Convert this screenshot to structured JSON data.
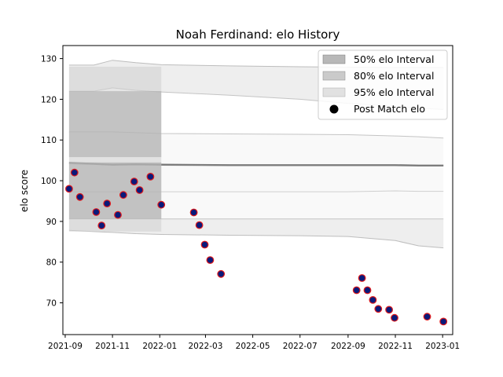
{
  "chart_data": {
    "type": "scatter",
    "title": "Noah Ferdinand: elo History",
    "xlabel": "",
    "ylabel": "elo score",
    "xlim": [
      "2021-08-29",
      "2023-01-14"
    ],
    "ylim": [
      62.2,
      133.2
    ],
    "x_ticks": [
      "2021-09",
      "2021-11",
      "2022-01",
      "2022-03",
      "2022-05",
      "2022-07",
      "2022-09",
      "2022-11",
      "2023-01"
    ],
    "y_ticks": [
      70,
      80,
      90,
      100,
      110,
      120,
      130
    ],
    "legend": {
      "position": "top-right",
      "items": [
        "50% elo Interval",
        "80% elo Interval",
        "95% elo Interval",
        "Post Match elo"
      ]
    },
    "grid": false,
    "colors": {
      "marker_fill": "#0a1a7a",
      "marker_edge": "#e0191b",
      "band50": "#888888",
      "band80": "#a8a8a8",
      "band95": "#cfcfcf",
      "mean_line": "#777777"
    },
    "series": [
      {
        "name": "Post Match elo",
        "points": [
          [
            "2021-09-06",
            98.0
          ],
          [
            "2021-09-13",
            102.0
          ],
          [
            "2021-09-20",
            96.0
          ],
          [
            "2021-10-11",
            92.3
          ],
          [
            "2021-10-18",
            89.0
          ],
          [
            "2021-10-25",
            94.4
          ],
          [
            "2021-11-08",
            91.6
          ],
          [
            "2021-11-15",
            96.5
          ],
          [
            "2021-11-29",
            99.8
          ],
          [
            "2021-12-06",
            97.7
          ],
          [
            "2021-12-20",
            101.0
          ],
          [
            "2022-01-03",
            94.1
          ],
          [
            "2022-02-14",
            92.2
          ],
          [
            "2022-02-21",
            89.1
          ],
          [
            "2022-02-28",
            84.3
          ],
          [
            "2022-03-07",
            80.5
          ],
          [
            "2022-03-21",
            77.1
          ],
          [
            "2022-09-12",
            73.1
          ],
          [
            "2022-09-19",
            76.1
          ],
          [
            "2022-09-26",
            73.1
          ],
          [
            "2022-10-03",
            70.7
          ],
          [
            "2022-10-10",
            68.5
          ],
          [
            "2022-10-24",
            68.3
          ],
          [
            "2022-10-31",
            66.3
          ],
          [
            "2022-12-12",
            66.6
          ],
          [
            "2023-01-02",
            65.4
          ]
        ]
      }
    ],
    "intervals": {
      "x": [
        "2021-09-06",
        "2021-10-08",
        "2021-11-01",
        "2021-12-01",
        "2022-01-03",
        "2022-04-01",
        "2022-07-01",
        "2022-09-01",
        "2022-11-01",
        "2022-12-01",
        "2023-01-02"
      ],
      "mean": [
        104.5,
        104.2,
        104.0,
        104.1,
        104.0,
        103.9,
        103.9,
        103.9,
        103.9,
        103.8,
        103.8
      ],
      "band50_lower": [
        97.3,
        97.3,
        97.3,
        97.3,
        97.3,
        97.3,
        97.3,
        97.3,
        97.5,
        97.4,
        97.4
      ],
      "band50_upper": [
        104.2,
        104.0,
        103.8,
        103.9,
        103.8,
        103.7,
        103.7,
        103.7,
        103.7,
        103.6,
        103.6
      ],
      "band80_lower": [
        90.6,
        90.6,
        90.6,
        90.6,
        90.6,
        90.6,
        90.6,
        90.6,
        90.6,
        90.6,
        90.6
      ],
      "band80_upper": [
        112.0,
        112.0,
        112.0,
        111.8,
        111.6,
        111.5,
        111.4,
        111.3,
        111.0,
        110.8,
        110.5
      ],
      "band95_lower": [
        87.8,
        87.5,
        87.3,
        87.0,
        86.8,
        86.6,
        86.5,
        86.3,
        85.3,
        84.0,
        83.5
      ],
      "band95_upper": [
        122.0,
        122.0,
        122.8,
        122.2,
        121.8,
        121.0,
        120.0,
        119.0,
        118.3,
        117.8,
        117.5
      ],
      "band95_outer_upper": [
        128.4,
        128.4,
        129.6,
        129.0,
        128.5,
        128.2,
        128.0,
        127.9,
        127.8,
        127.8,
        127.8
      ]
    },
    "highlight_window": {
      "x": [
        "2021-09-06",
        "2022-01-03"
      ],
      "band50": [
        105.8,
        122.0
      ],
      "band80": [
        90.6,
        104.5
      ],
      "band95": [
        87.5,
        128.0
      ]
    }
  }
}
